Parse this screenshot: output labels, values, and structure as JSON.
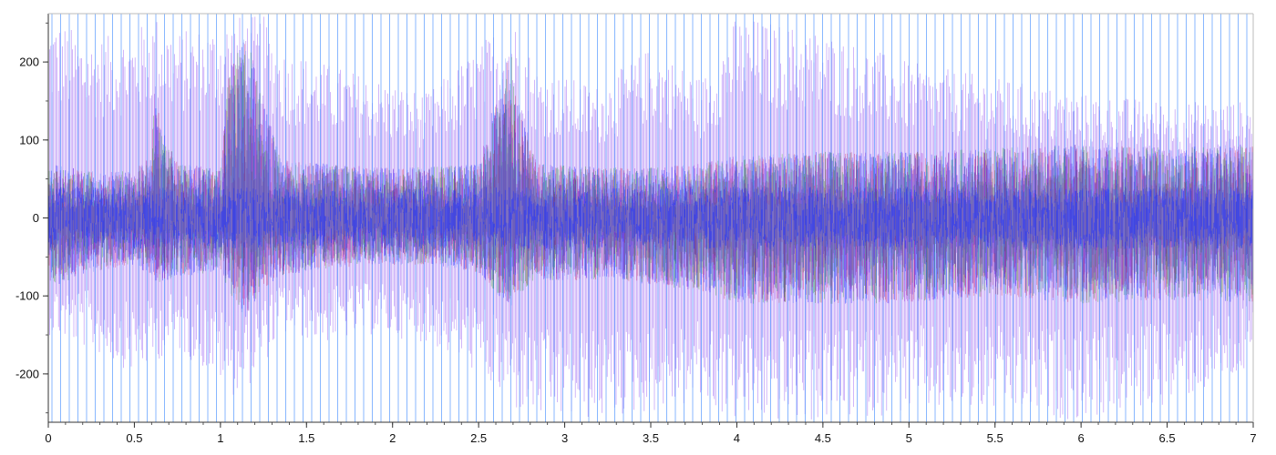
{
  "chart_data": {
    "type": "line",
    "title": "",
    "xlabel": "",
    "ylabel": "",
    "xlim": [
      0,
      7
    ],
    "ylim": [
      -262,
      262
    ],
    "x_ticks": [
      "0",
      "0.5",
      "1",
      "1.5",
      "2",
      "2.5",
      "3",
      "3.5",
      "4",
      "4.5",
      "5",
      "5.5",
      "6",
      "6.5",
      "7"
    ],
    "y_ticks": [
      "200",
      "100",
      "0",
      "-100",
      "-200"
    ],
    "x_tick_values": [
      0,
      0.5,
      1,
      1.5,
      2,
      2.5,
      3,
      3.5,
      4,
      4.5,
      5,
      5.5,
      6,
      6.5,
      7
    ],
    "y_tick_values": [
      200,
      100,
      0,
      -100,
      -200
    ],
    "grid": false,
    "legend": "none",
    "series_colors": [
      "#3333ff",
      "#cc0033",
      "#008800",
      "#8800cc",
      "#4488ff"
    ],
    "envelope": {
      "x": [
        0,
        0.25,
        0.5,
        0.6,
        0.62,
        0.65,
        0.75,
        1.0,
        1.05,
        1.15,
        1.25,
        1.35,
        1.6,
        1.9,
        2.2,
        2.5,
        2.65,
        2.68,
        2.72,
        2.85,
        3.2,
        3.5,
        3.8,
        4.0,
        4.5,
        5.0,
        5.5,
        6.0,
        6.5,
        7.0
      ],
      "upper_core": [
        70,
        60,
        60,
        90,
        180,
        120,
        70,
        65,
        190,
        240,
        150,
        75,
        70,
        65,
        65,
        70,
        200,
        230,
        150,
        70,
        65,
        65,
        70,
        80,
        85,
        85,
        90,
        95,
        90,
        95
      ],
      "lower_core": [
        -90,
        -70,
        -60,
        -75,
        -80,
        -85,
        -75,
        -70,
        -95,
        -130,
        -90,
        -75,
        -65,
        -60,
        -60,
        -70,
        -110,
        -120,
        -100,
        -80,
        -80,
        -85,
        -95,
        -110,
        -110,
        -110,
        -100,
        -110,
        -105,
        -110
      ],
      "upper_bursts": [
        260,
        230,
        240,
        260,
        260,
        260,
        240,
        250,
        260,
        260,
        260,
        220,
        200,
        180,
        160,
        220,
        260,
        260,
        250,
        190,
        170,
        220,
        180,
        260,
        240,
        200,
        180,
        160,
        150,
        150
      ],
      "lower_bursts": [
        -150,
        -170,
        -200,
        -190,
        -190,
        -180,
        -170,
        -210,
        -230,
        -220,
        -190,
        -150,
        -160,
        -150,
        -160,
        -200,
        -240,
        -230,
        -250,
        -260,
        -260,
        -250,
        -240,
        -262,
        -262,
        -250,
        -250,
        -260,
        -240,
        -200
      ]
    }
  }
}
